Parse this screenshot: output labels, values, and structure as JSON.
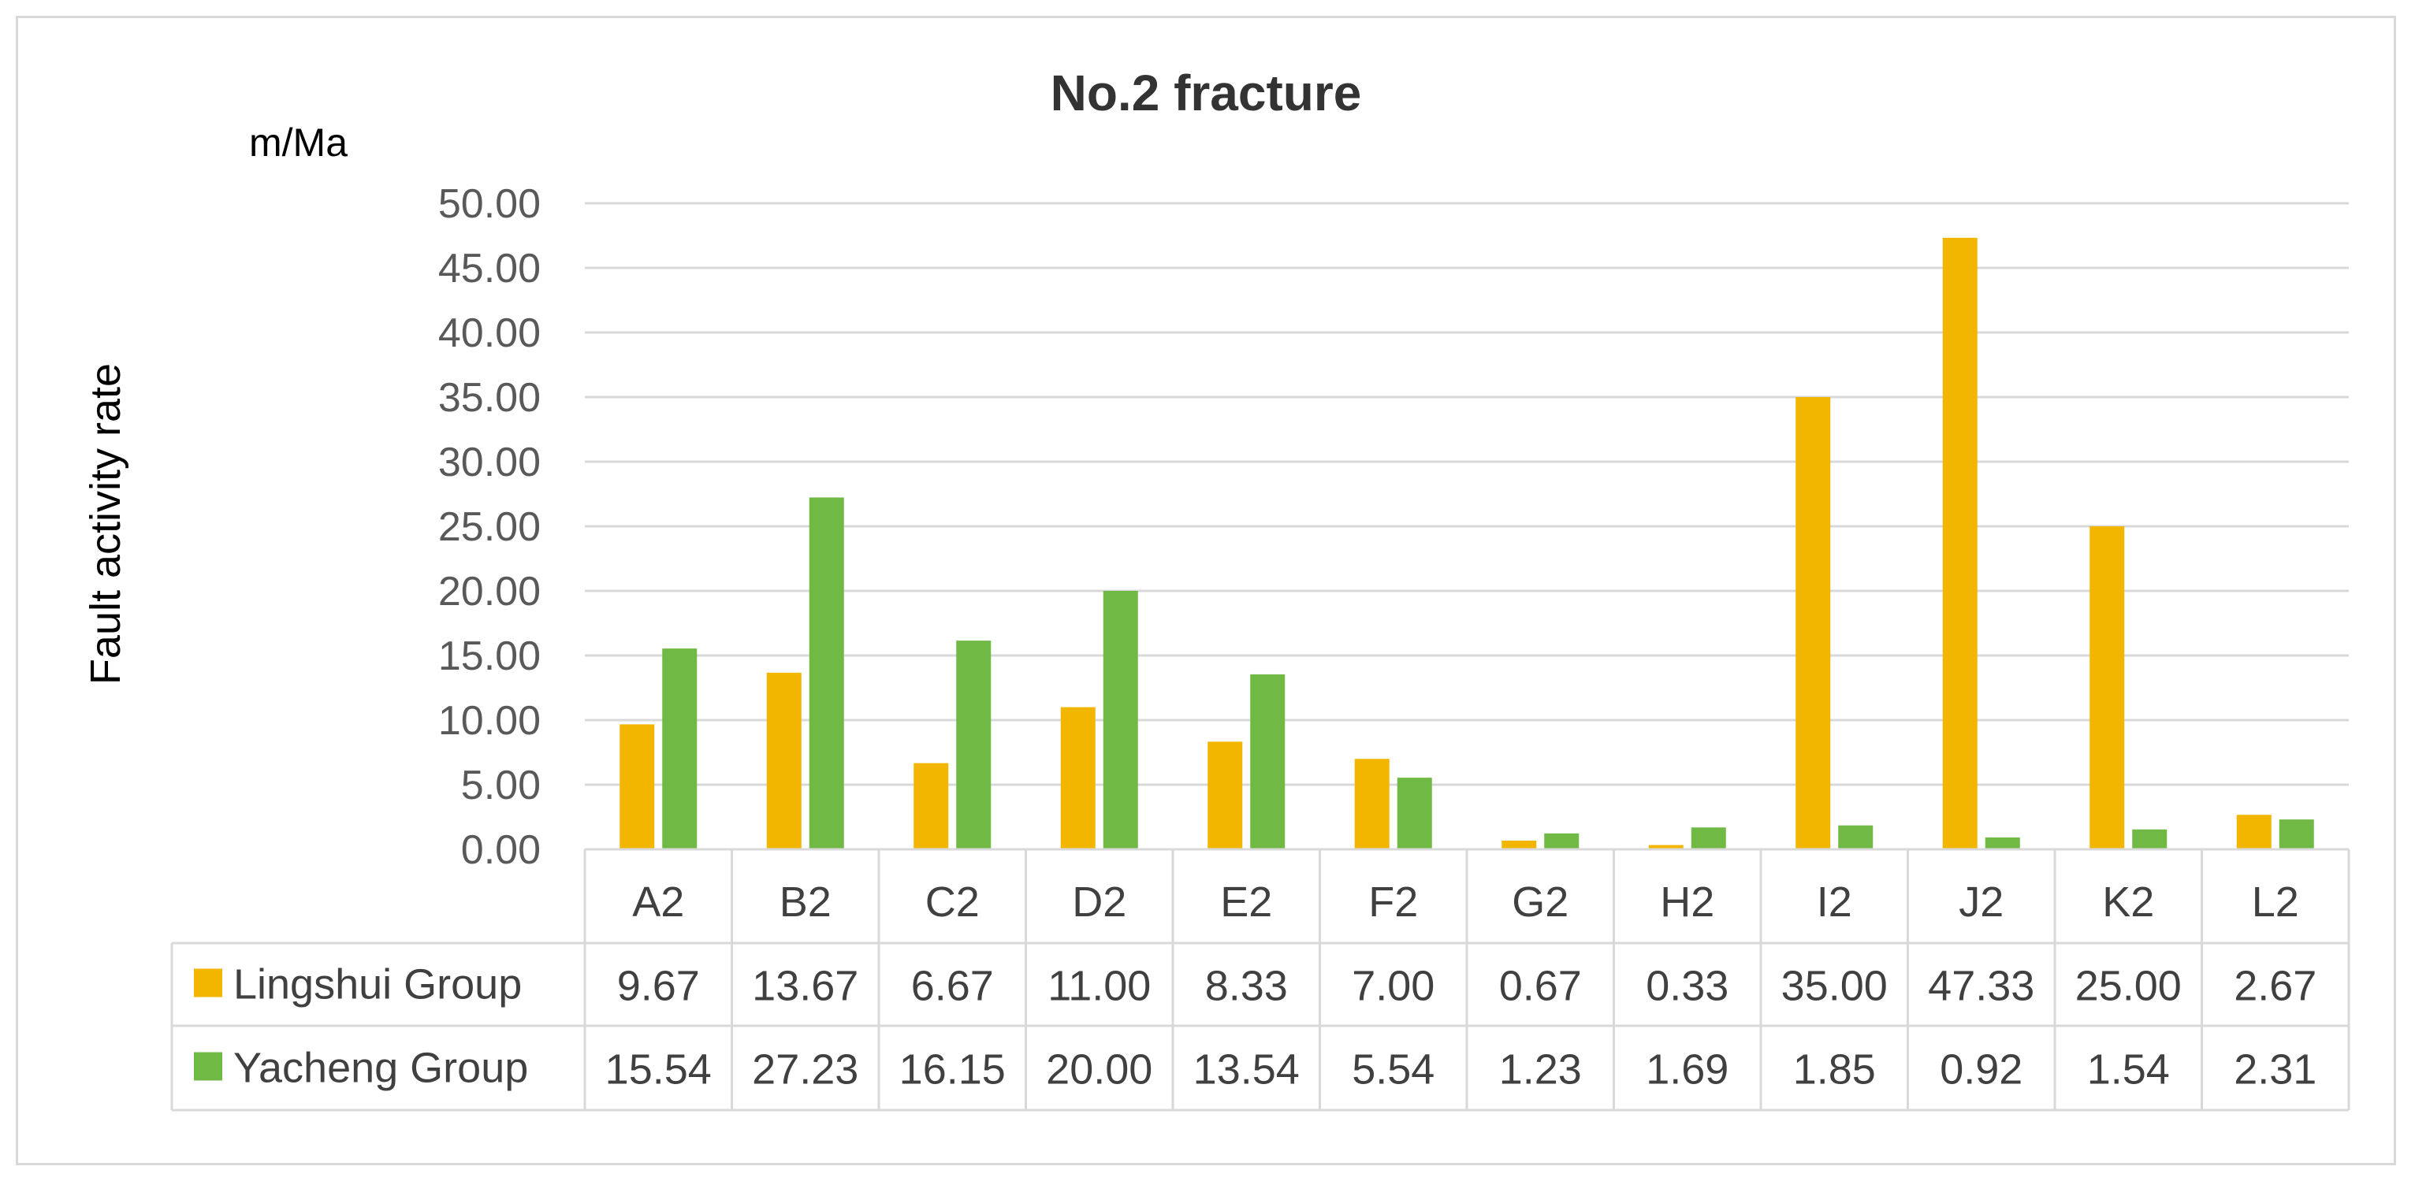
{
  "chart_data": {
    "type": "bar",
    "title": "No.2 fracture",
    "unit_label": "m/Ma",
    "ylabel": "Fault activity rate",
    "ylim": [
      0,
      50
    ],
    "yticks": [
      "0.00",
      "5.00",
      "10.00",
      "15.00",
      "20.00",
      "25.00",
      "30.00",
      "35.00",
      "40.00",
      "45.00",
      "50.00"
    ],
    "grid": true,
    "legend": "data-table",
    "categories": [
      "A2",
      "B2",
      "C2",
      "D2",
      "E2",
      "F2",
      "G2",
      "H2",
      "I2",
      "J2",
      "K2",
      "L2"
    ],
    "series": [
      {
        "name": "Lingshui Group",
        "color": "#f2b600",
        "values": [
          9.67,
          13.67,
          6.67,
          11.0,
          8.33,
          7.0,
          0.67,
          0.33,
          35.0,
          47.33,
          25.0,
          2.67
        ],
        "labels": [
          "9.67",
          "13.67",
          "6.67",
          "11.00",
          "8.33",
          "7.00",
          "0.67",
          "0.33",
          "35.00",
          "47.33",
          "25.00",
          "2.67"
        ]
      },
      {
        "name": "Yacheng Group",
        "color": "#70b944",
        "values": [
          15.54,
          27.23,
          16.15,
          20.0,
          13.54,
          5.54,
          1.23,
          1.69,
          1.85,
          0.92,
          1.54,
          2.31
        ],
        "labels": [
          "15.54",
          "27.23",
          "16.15",
          "20.00",
          "13.54",
          "5.54",
          "1.23",
          "1.69",
          "1.85",
          "0.92",
          "1.54",
          "2.31"
        ]
      }
    ]
  }
}
